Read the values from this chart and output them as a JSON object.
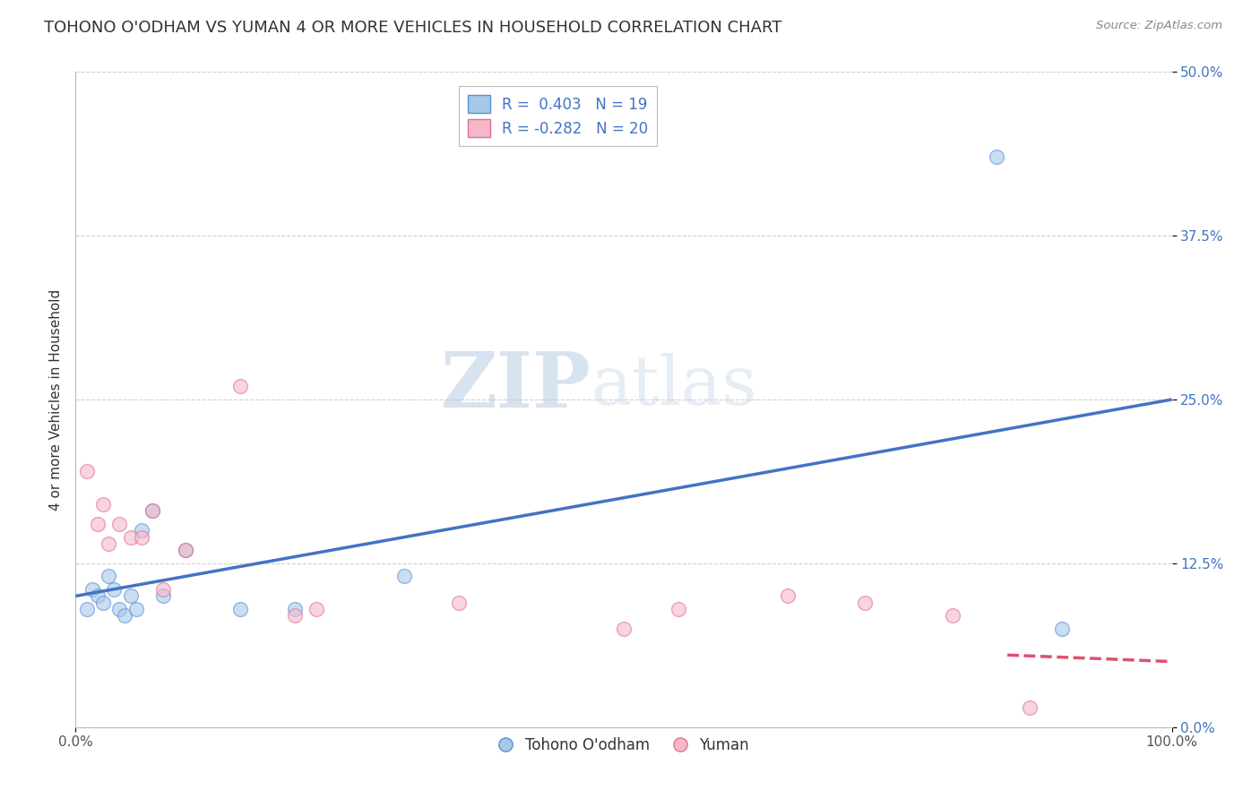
{
  "title": "TOHONO O'ODHAM VS YUMAN 4 OR MORE VEHICLES IN HOUSEHOLD CORRELATION CHART",
  "source": "Source: ZipAtlas.com",
  "ylabel": "4 or more Vehicles in Household",
  "legend_labels": [
    "Tohono O'odham",
    "Yuman"
  ],
  "xlim": [
    0,
    100
  ],
  "ylim": [
    0,
    50
  ],
  "xtick_vals": [
    0,
    100
  ],
  "xtick_labels": [
    "0.0%",
    "100.0%"
  ],
  "ytick_labels": [
    "0.0%",
    "12.5%",
    "25.0%",
    "37.5%",
    "50.0%"
  ],
  "ytick_values": [
    0,
    12.5,
    25.0,
    37.5,
    50.0
  ],
  "r_blue": "0.403",
  "n_blue": "19",
  "r_pink": "-0.282",
  "n_pink": "20",
  "blue_fill": "#a8c8e8",
  "pink_fill": "#f4b8c8",
  "blue_edge": "#5b8dd9",
  "pink_edge": "#e07090",
  "blue_line_color": "#4472c4",
  "pink_line_color": "#e05070",
  "blue_scatter_x": [
    1.0,
    1.5,
    2.0,
    2.5,
    3.0,
    3.5,
    4.0,
    4.5,
    5.0,
    5.5,
    6.0,
    7.0,
    8.0,
    10.0,
    15.0,
    20.0,
    30.0,
    84.0,
    90.0
  ],
  "blue_scatter_y": [
    9.0,
    10.5,
    10.0,
    9.5,
    11.5,
    10.5,
    9.0,
    8.5,
    10.0,
    9.0,
    15.0,
    16.5,
    10.0,
    13.5,
    9.0,
    9.0,
    11.5,
    43.5,
    7.5
  ],
  "pink_scatter_x": [
    1.0,
    2.0,
    2.5,
    3.0,
    4.0,
    5.0,
    6.0,
    7.0,
    8.0,
    10.0,
    15.0,
    20.0,
    22.0,
    35.0,
    50.0,
    55.0,
    65.0,
    72.0,
    80.0,
    87.0
  ],
  "pink_scatter_y": [
    19.5,
    15.5,
    17.0,
    14.0,
    15.5,
    14.5,
    14.5,
    16.5,
    10.5,
    13.5,
    26.0,
    8.5,
    9.0,
    9.5,
    7.5,
    9.0,
    10.0,
    9.5,
    8.5,
    1.5
  ],
  "blue_line_x": [
    0,
    100
  ],
  "blue_line_y": [
    10.0,
    25.0
  ],
  "pink_line_x": [
    0,
    100
  ],
  "pink_line_y": [
    13.0,
    5.0
  ],
  "watermark_zip": "ZIP",
  "watermark_atlas": "atlas",
  "background_color": "#ffffff",
  "grid_color": "#d0d0d0",
  "title_fontsize": 13,
  "axis_label_fontsize": 11,
  "tick_fontsize": 11,
  "legend_fontsize": 12,
  "scatter_size": 130,
  "scatter_alpha": 0.6,
  "line_width": 2.5
}
